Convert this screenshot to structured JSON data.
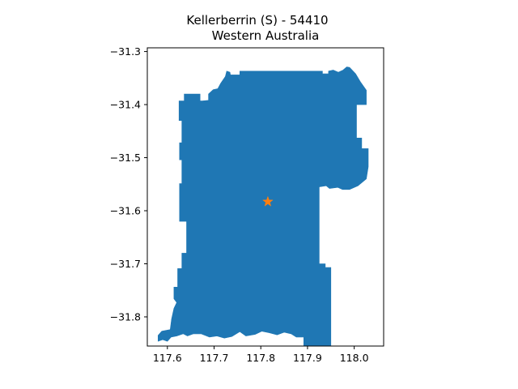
{
  "figure": {
    "title_line1": "Kellerberrin (S) - 54410",
    "title_line2": "Western Australia"
  },
  "chart_data": {
    "type": "map",
    "title": "Kellerberrin (S) - 54410\nWestern Australia",
    "xlim": [
      117.557,
      118.063
    ],
    "ylim": [
      -31.855,
      -31.293
    ],
    "xticks": [
      117.6,
      117.7,
      117.8,
      117.9,
      118.0
    ],
    "xtick_labels": [
      "117.6",
      "117.7",
      "117.8",
      "117.9",
      "118.0"
    ],
    "yticks": [
      -31.3,
      -31.4,
      -31.5,
      -31.6,
      -31.7,
      -31.8
    ],
    "ytick_labels": [
      "−31.3",
      "−31.4",
      "−31.5",
      "−31.6",
      "−31.7",
      "−31.8"
    ],
    "region": {
      "fill_color": "#1f77b4",
      "boundary_lonlat": [
        [
          117.675,
          -31.393
        ],
        [
          117.688,
          -31.392
        ],
        [
          117.688,
          -31.38
        ],
        [
          117.698,
          -31.372
        ],
        [
          117.708,
          -31.37
        ],
        [
          117.714,
          -31.36
        ],
        [
          117.724,
          -31.347
        ],
        [
          117.727,
          -31.337
        ],
        [
          117.734,
          -31.339
        ],
        [
          117.735,
          -31.344
        ],
        [
          117.755,
          -31.344
        ],
        [
          117.755,
          -31.337
        ],
        [
          117.932,
          -31.337
        ],
        [
          117.932,
          -31.342
        ],
        [
          117.945,
          -31.342
        ],
        [
          117.945,
          -31.337
        ],
        [
          117.955,
          -31.335
        ],
        [
          117.966,
          -31.339
        ],
        [
          117.976,
          -31.335
        ],
        [
          117.984,
          -31.329
        ],
        [
          117.99,
          -31.33
        ],
        [
          118.003,
          -31.342
        ],
        [
          118.014,
          -31.358
        ],
        [
          118.026,
          -31.373
        ],
        [
          118.026,
          -31.4
        ],
        [
          118.005,
          -31.4
        ],
        [
          118.005,
          -31.463
        ],
        [
          118.016,
          -31.463
        ],
        [
          118.016,
          -31.483
        ],
        [
          118.03,
          -31.483
        ],
        [
          118.03,
          -31.517
        ],
        [
          118.026,
          -31.54
        ],
        [
          118.008,
          -31.553
        ],
        [
          117.99,
          -31.56
        ],
        [
          117.975,
          -31.56
        ],
        [
          117.965,
          -31.556
        ],
        [
          117.947,
          -31.558
        ],
        [
          117.94,
          -31.553
        ],
        [
          117.925,
          -31.555
        ],
        [
          117.925,
          -31.7
        ],
        [
          117.938,
          -31.7
        ],
        [
          117.938,
          -31.707
        ],
        [
          117.95,
          -31.707
        ],
        [
          117.95,
          -31.855
        ],
        [
          117.892,
          -31.855
        ],
        [
          117.892,
          -31.838
        ],
        [
          117.876,
          -31.838
        ],
        [
          117.865,
          -31.832
        ],
        [
          117.85,
          -31.829
        ],
        [
          117.835,
          -31.834
        ],
        [
          117.818,
          -31.83
        ],
        [
          117.802,
          -31.827
        ],
        [
          117.788,
          -31.833
        ],
        [
          117.768,
          -31.836
        ],
        [
          117.755,
          -31.828
        ],
        [
          117.738,
          -31.837
        ],
        [
          117.722,
          -31.84
        ],
        [
          117.706,
          -31.836
        ],
        [
          117.69,
          -31.838
        ],
        [
          117.672,
          -31.832
        ],
        [
          117.656,
          -31.832
        ],
        [
          117.643,
          -31.836
        ],
        [
          117.634,
          -31.832
        ],
        [
          117.62,
          -31.836
        ],
        [
          117.608,
          -31.838
        ],
        [
          117.6,
          -31.846
        ],
        [
          117.59,
          -31.843
        ],
        [
          117.58,
          -31.846
        ],
        [
          117.58,
          -31.835
        ],
        [
          117.588,
          -31.827
        ],
        [
          117.606,
          -31.824
        ],
        [
          117.609,
          -31.804
        ],
        [
          117.614,
          -31.784
        ],
        [
          117.62,
          -31.773
        ],
        [
          117.614,
          -31.766
        ],
        [
          117.614,
          -31.744
        ],
        [
          117.622,
          -31.744
        ],
        [
          117.622,
          -31.709
        ],
        [
          117.631,
          -31.709
        ],
        [
          117.631,
          -31.68
        ],
        [
          117.641,
          -31.68
        ],
        [
          117.641,
          -31.62
        ],
        [
          117.626,
          -31.62
        ],
        [
          117.626,
          -31.549
        ],
        [
          117.631,
          -31.549
        ],
        [
          117.631,
          -31.504
        ],
        [
          117.626,
          -31.504
        ],
        [
          117.626,
          -31.472
        ],
        [
          117.631,
          -31.472
        ],
        [
          117.631,
          -31.43
        ],
        [
          117.625,
          -31.43
        ],
        [
          117.625,
          -31.393
        ],
        [
          117.636,
          -31.393
        ],
        [
          117.636,
          -31.38
        ],
        [
          117.67,
          -31.38
        ],
        [
          117.67,
          -31.393
        ]
      ]
    },
    "markers": [
      {
        "lon": 117.815,
        "lat": -31.583,
        "symbol": "star",
        "color": "#ff7f0e"
      }
    ]
  }
}
